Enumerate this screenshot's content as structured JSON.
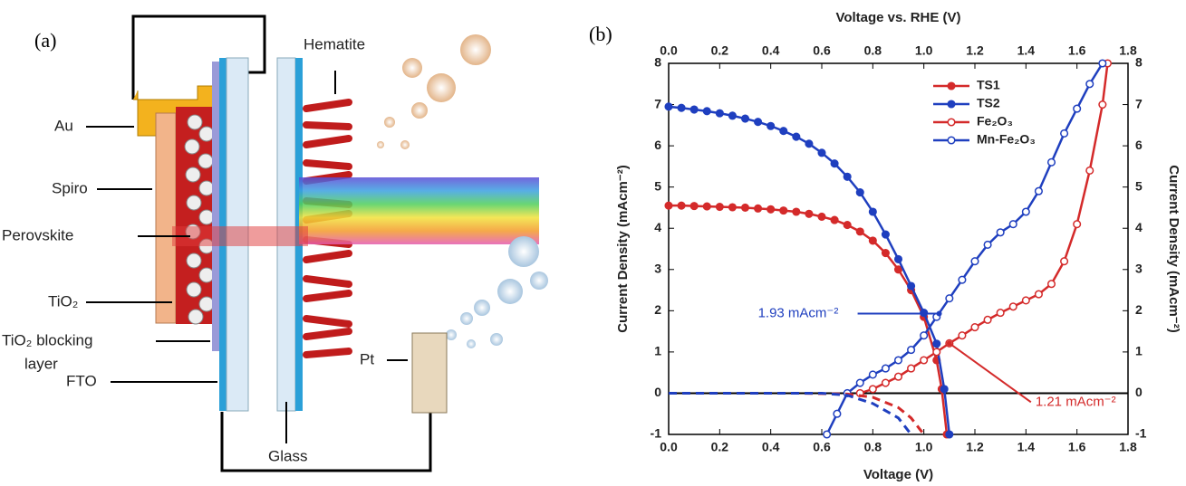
{
  "panel_a": {
    "label": "(a)",
    "au": "Au",
    "spiro": "Spiro",
    "perovskite": "Perovskite",
    "tio2": "TiO₂",
    "blocking": "TiO₂ blocking",
    "layer": "layer",
    "fto": "FTO",
    "hematite": "Hematite",
    "pt": "Pt",
    "glass": "Glass"
  },
  "chart_data": {
    "type": "line",
    "panel_label": "(b)",
    "x_label": "Voltage (V)",
    "x2_label": "Voltage vs. RHE (V)",
    "y_label": "Current Density (mAcm⁻²)",
    "y2_label": "Current Density (mAcm⁻²)",
    "xlim": [
      0,
      1.8
    ],
    "xticks": [
      {
        "value": 0,
        "label": "0.0"
      },
      0.2,
      0.4,
      0.6,
      0.8,
      {
        "value": 1,
        "label": "1.0"
      },
      1.2,
      1.4,
      1.6,
      1.8
    ],
    "x2lim": [
      0,
      1.8
    ],
    "x2ticks": [
      {
        "value": 0,
        "label": "0.0"
      },
      0.2,
      0.4,
      0.6,
      0.8,
      {
        "value": 1,
        "label": "1.0"
      },
      1.2,
      1.4,
      1.6,
      1.8
    ],
    "ylim": [
      -1,
      8
    ],
    "yticks": [
      -1,
      0,
      1,
      2,
      3,
      4,
      5,
      6,
      7,
      8
    ],
    "y2lim": [
      -1,
      8
    ],
    "y2ticks": [
      -1,
      0,
      1,
      2,
      3,
      4,
      5,
      6,
      7,
      8
    ],
    "series": [
      {
        "name": "TS1",
        "color": "#d42a2a",
        "marker": "filled",
        "x": [
          0,
          0.05,
          0.1,
          0.15,
          0.2,
          0.25,
          0.3,
          0.35,
          0.4,
          0.45,
          0.5,
          0.55,
          0.6,
          0.65,
          0.7,
          0.75,
          0.8,
          0.85,
          0.9,
          0.95,
          1,
          1.05,
          1.07,
          1.09
        ],
        "values": [
          4.55,
          4.55,
          4.54,
          4.53,
          4.52,
          4.51,
          4.5,
          4.48,
          4.46,
          4.43,
          4.4,
          4.35,
          4.28,
          4.2,
          4.08,
          3.92,
          3.7,
          3.4,
          3,
          2.5,
          1.85,
          0.8,
          0.1,
          -1
        ]
      },
      {
        "name": "TS2",
        "color": "#1f3fbf",
        "marker": "filled",
        "x": [
          0,
          0.05,
          0.1,
          0.15,
          0.2,
          0.25,
          0.3,
          0.35,
          0.4,
          0.45,
          0.5,
          0.55,
          0.6,
          0.65,
          0.7,
          0.75,
          0.8,
          0.85,
          0.9,
          0.95,
          1,
          1.05,
          1.08,
          1.1
        ],
        "values": [
          6.95,
          6.92,
          6.88,
          6.84,
          6.79,
          6.73,
          6.66,
          6.58,
          6.48,
          6.36,
          6.22,
          6.05,
          5.83,
          5.57,
          5.25,
          4.87,
          4.4,
          3.85,
          3.25,
          2.6,
          1.95,
          1.2,
          0.1,
          -1
        ]
      },
      {
        "name": "Fe₂O₃",
        "color": "#d42a2a",
        "marker": "open",
        "x": [
          0.75,
          0.8,
          0.85,
          0.9,
          0.95,
          1,
          1.05,
          1.1,
          1.15,
          1.2,
          1.25,
          1.3,
          1.35,
          1.4,
          1.45,
          1.5,
          1.55,
          1.6,
          1.65,
          1.7,
          1.72
        ],
        "values": [
          0,
          0.1,
          0.25,
          0.4,
          0.6,
          0.8,
          1,
          1.21,
          1.4,
          1.6,
          1.78,
          1.95,
          2.1,
          2.25,
          2.4,
          2.65,
          3.2,
          4.1,
          5.4,
          7,
          8
        ]
      },
      {
        "name": "Mn-Fe₂O₃",
        "color": "#1f3fbf",
        "marker": "open",
        "x": [
          0.62,
          0.66,
          0.7,
          0.75,
          0.8,
          0.85,
          0.9,
          0.95,
          1,
          1.05,
          1.1,
          1.15,
          1.2,
          1.25,
          1.3,
          1.35,
          1.4,
          1.45,
          1.5,
          1.55,
          1.6,
          1.65,
          1.7
        ],
        "values": [
          -1,
          -0.5,
          0,
          0.25,
          0.45,
          0.6,
          0.8,
          1.05,
          1.4,
          1.85,
          2.3,
          2.75,
          3.2,
          3.6,
          3.9,
          4.1,
          4.4,
          4.9,
          5.6,
          6.3,
          6.9,
          7.5,
          8
        ]
      },
      {
        "color": "#d42a2a",
        "marker": "none",
        "dash": true,
        "x": [
          0,
          0.5,
          0.7,
          0.8,
          0.9,
          0.95,
          1
        ],
        "values": [
          0,
          0,
          -0.02,
          -0.1,
          -0.35,
          -0.6,
          -1
        ]
      },
      {
        "color": "#1f3fbf",
        "marker": "none",
        "dash": true,
        "x": [
          0,
          0.6,
          0.7,
          0.8,
          0.9,
          0.95
        ],
        "values": [
          0,
          0,
          -0.05,
          -0.25,
          -0.6,
          -1
        ]
      }
    ],
    "annotations": [
      {
        "text": "1.93 mAcm⁻²",
        "color": "#1f3fbf",
        "x": 1.06,
        "y": 1.93
      },
      {
        "text": "1.21 mAcm⁻²",
        "color": "#d42a2a",
        "x": 1.1,
        "y": 1.21
      }
    ],
    "legend": "upper-center",
    "zero_line": true
  }
}
